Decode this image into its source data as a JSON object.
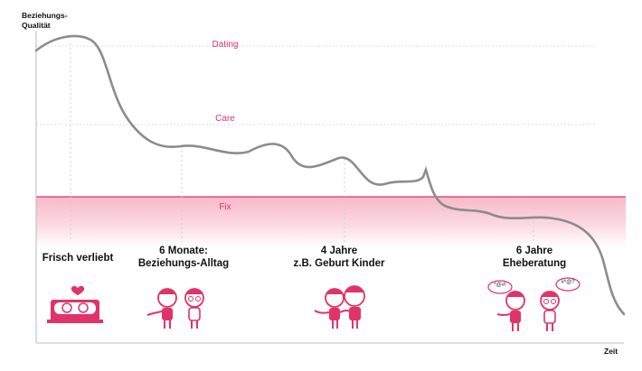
{
  "axes": {
    "y_label_line1": "Beziehungs-",
    "y_label_line2": "Qualität",
    "x_label": "Zeit"
  },
  "zones": {
    "dating": "Dating",
    "care": "Care",
    "fix": "Fix"
  },
  "stages": [
    {
      "line1": "Frisch verliebt",
      "line2": ""
    },
    {
      "line1": "6 Monate:",
      "line2": "Beziehungs-Alltag"
    },
    {
      "line1": "4 Jahre",
      "line2": "z.B. Geburt Kinder"
    },
    {
      "line1": "6 Jahre",
      "line2": "Eheberatung"
    }
  ],
  "speech_bubbles": [
    "*@#!",
    "#*@?"
  ],
  "colors": {
    "accent": "#e0336a",
    "fix_band": "#f9c9d6",
    "curve": "#8c8c8c",
    "guide": "#d6d6d6"
  }
}
